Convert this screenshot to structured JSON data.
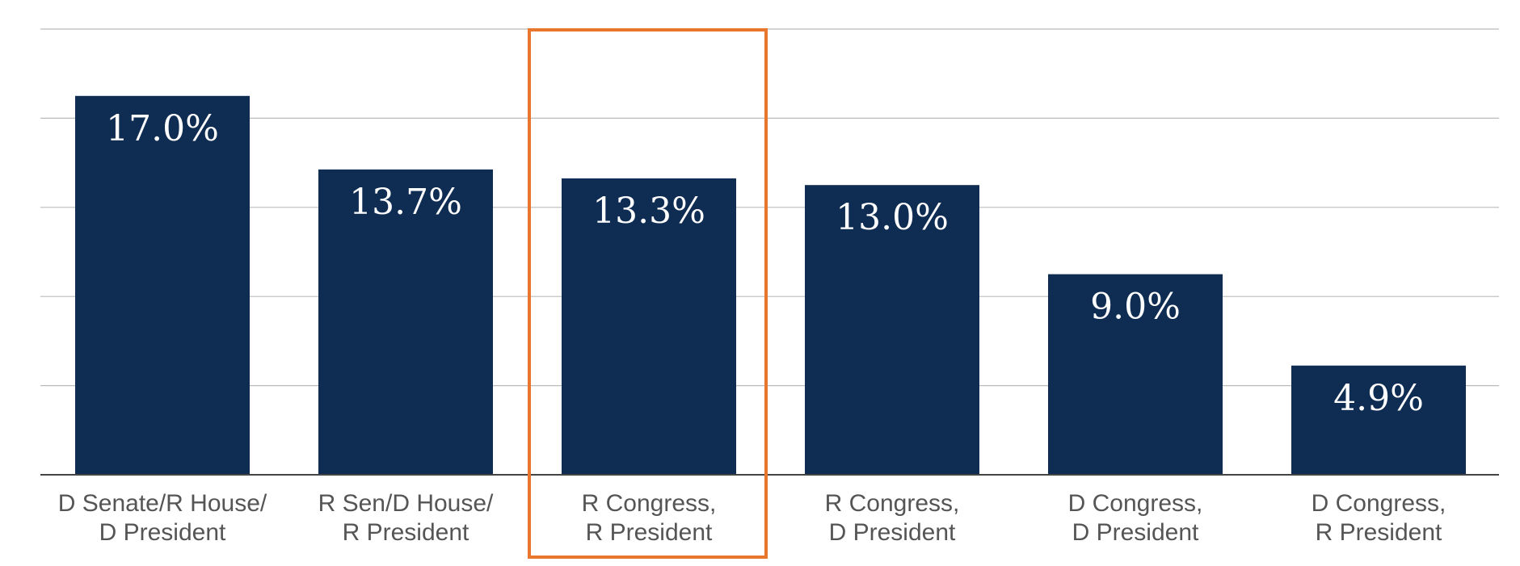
{
  "chart_data": {
    "type": "bar",
    "categories": [
      [
        "D Senate/R House/",
        "D President"
      ],
      [
        "R Sen/D House/",
        "R President"
      ],
      [
        "R Congress,",
        "R President"
      ],
      [
        "R Congress,",
        "D President"
      ],
      [
        "D Congress,",
        "D President"
      ],
      [
        "D Congress,",
        "R President"
      ]
    ],
    "values": [
      17.0,
      13.7,
      13.3,
      13.0,
      9.0,
      4.9
    ],
    "value_labels": [
      "17.0%",
      "13.7%",
      "13.3%",
      "13.0%",
      "9.0%",
      "4.9%"
    ],
    "ylim": [
      0,
      20
    ],
    "grid": true,
    "highlighted_category_index": 2,
    "bar_color": "#0f2c52",
    "highlight_color": "#e8762c",
    "grid_color": "#bbbbbb",
    "axis_color": "#444444"
  }
}
